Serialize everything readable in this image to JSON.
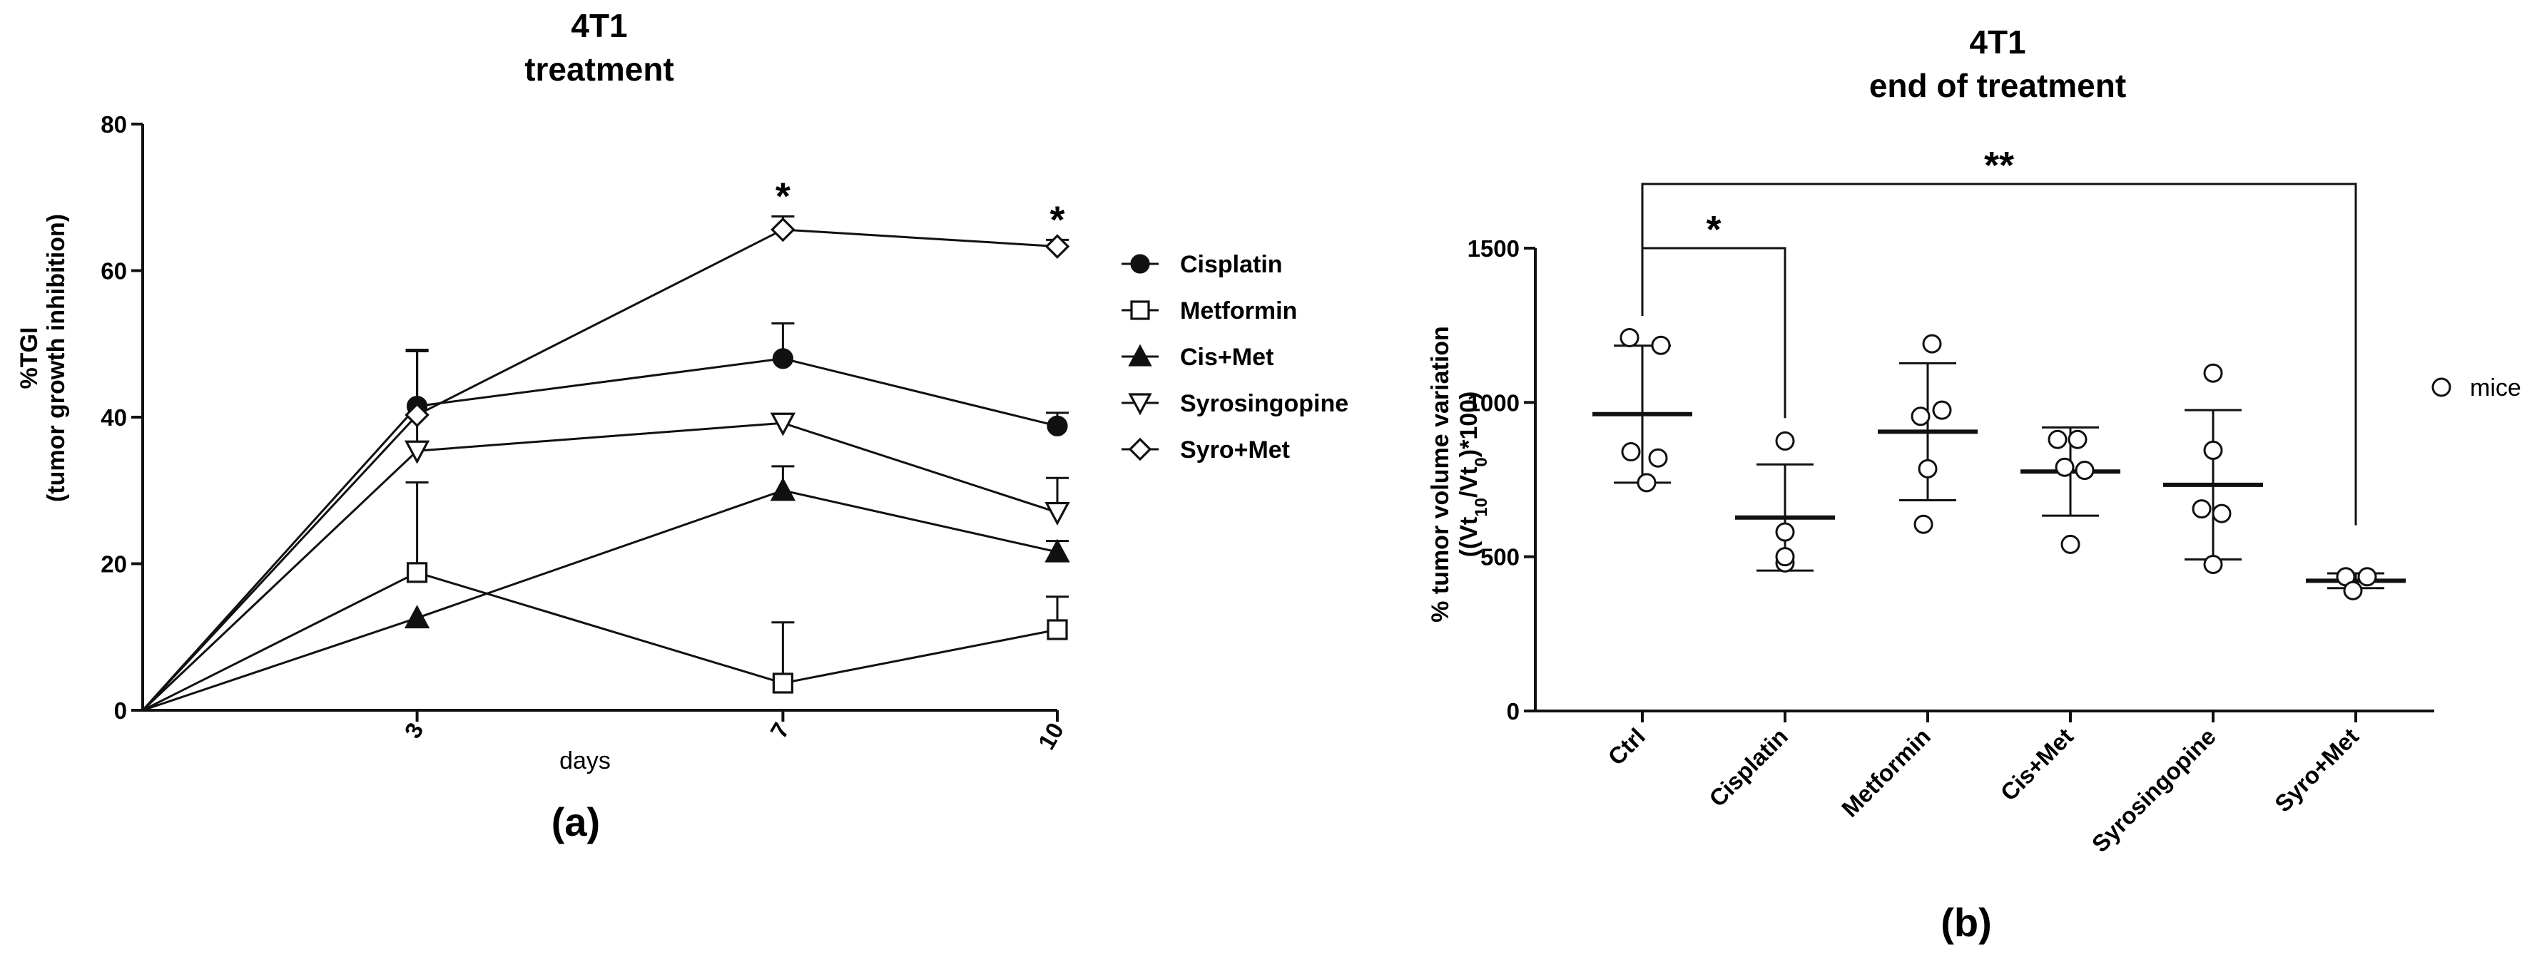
{
  "chart_data": [
    {
      "type": "line",
      "title_lines": [
        "4T1",
        "treatment"
      ],
      "xlabel": "days",
      "ylabel_lines": [
        "%TGI",
        "(tumor growth inhibition)"
      ],
      "x": [
        0,
        3,
        7,
        10
      ],
      "x_tick_labels": [
        "3",
        "7",
        "10"
      ],
      "x_tick_values": [
        3,
        7,
        10
      ],
      "xlim": [
        0,
        10
      ],
      "ylim": [
        0,
        80
      ],
      "y_ticks": [
        0,
        20,
        40,
        60,
        80
      ],
      "y_tick_labels": [
        "0",
        "20",
        "40",
        "60",
        "80"
      ],
      "series": [
        {
          "name": "Cisplatin",
          "marker": "circle-filled",
          "values": [
            0,
            41.5,
            48,
            38.8
          ],
          "err": [
            0,
            7.5,
            4.8,
            1.8
          ]
        },
        {
          "name": "Metformin",
          "marker": "square-open",
          "values": [
            0,
            18.8,
            3.7,
            11
          ],
          "err": [
            0,
            12.3,
            8.3,
            4.5
          ]
        },
        {
          "name": "Cis+Met",
          "marker": "triangle-up-filled",
          "values": [
            0,
            12.6,
            30,
            21.6
          ],
          "err": [
            0,
            0,
            3.3,
            1.5
          ]
        },
        {
          "name": "Syrosingopine",
          "marker": "triangle-down-open",
          "values": [
            0,
            35.4,
            39.2,
            27
          ],
          "err": [
            0,
            13.8,
            0,
            4.7
          ]
        },
        {
          "name": "Syro+Met",
          "marker": "diamond-open",
          "values": [
            0,
            40.3,
            65.6,
            63.3
          ],
          "err": [
            0,
            8.7,
            1.8,
            0.9
          ]
        }
      ],
      "annotations": [
        {
          "x": 7,
          "text": "*"
        },
        {
          "x": 10,
          "text": "*"
        }
      ],
      "legend_position": "right",
      "panel_label": "(a)"
    },
    {
      "type": "scatter",
      "title_lines": [
        "4T1",
        "end of treatment"
      ],
      "xlabel": "",
      "ylabel_parts": {
        "line1": "% tumor volume variation",
        "line2": [
          {
            "t": "((Vt",
            "sub": false
          },
          {
            "t": "10",
            "sub": true
          },
          {
            "t": "/Vt",
            "sub": false
          },
          {
            "t": "0",
            "sub": true
          },
          {
            "t": ")*100)",
            "sub": false
          }
        ]
      },
      "categories": [
        "Ctrl",
        "Cisplatin",
        "Metformin",
        "Cis+Met",
        "Syrosingopine",
        "Syro+Met"
      ],
      "ylim": [
        0,
        1500
      ],
      "y_ticks": [
        0,
        500,
        1000,
        1500
      ],
      "y_tick_labels": [
        "0",
        "500",
        "1000",
        "1500"
      ],
      "points": [
        [
          1210,
          1185,
          820,
          740,
          840
        ],
        [
          875,
          580,
          480,
          500
        ],
        [
          1190,
          975,
          955,
          785,
          605
        ],
        [
          880,
          880,
          790,
          780,
          540
        ],
        [
          1095,
          845,
          655,
          640,
          475
        ],
        [
          435,
          435,
          390
        ]
      ],
      "point_offsets": [
        [
          -0.09,
          0.13,
          0.11,
          0.03,
          -0.08
        ],
        [
          0.0,
          0.0,
          0.0,
          0.0
        ],
        [
          0.03,
          0.1,
          -0.05,
          0.0,
          -0.03
        ],
        [
          -0.09,
          0.05,
          -0.04,
          0.1,
          0.0
        ],
        [
          0.0,
          0.0,
          -0.08,
          0.06,
          0.0
        ],
        [
          -0.07,
          0.08,
          -0.02
        ]
      ],
      "means": [
        962,
        627,
        905,
        776,
        733,
        422
      ],
      "sd": [
        222,
        172,
        222,
        143,
        242,
        24
      ],
      "legend": "mice",
      "significance": [
        {
          "from": "Ctrl",
          "to": "Cisplatin",
          "label": "*"
        },
        {
          "from": "Ctrl",
          "to": "Syro+Met",
          "label": "**"
        }
      ],
      "panel_label": "(b)"
    }
  ]
}
